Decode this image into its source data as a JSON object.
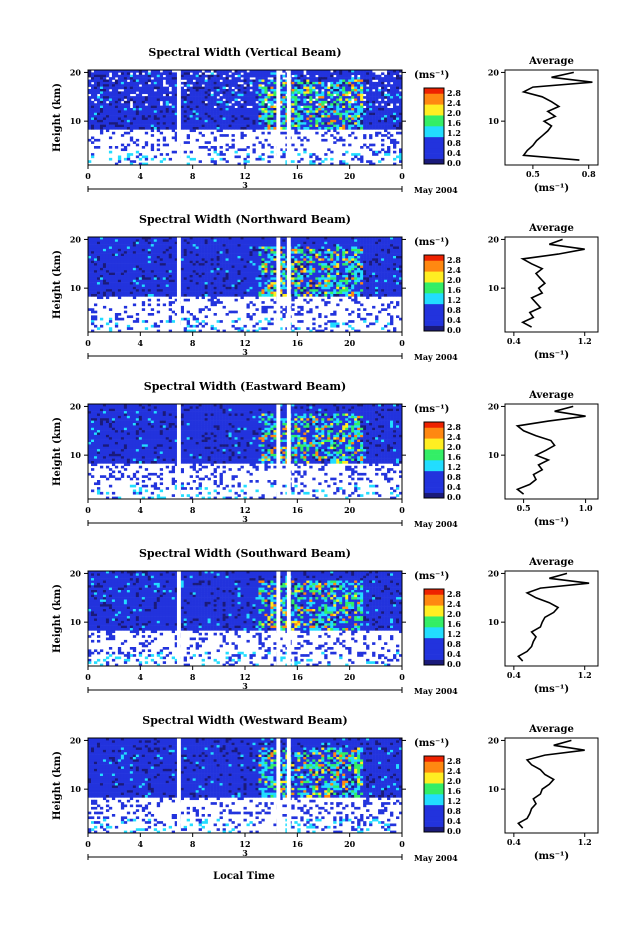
{
  "figure": {
    "bottom_xlabel": "Local Time",
    "panels_colorbar_unit": "(ms⁻¹)",
    "colorbar_ticks": [
      "2.8",
      "2.4",
      "2.0",
      "1.6",
      "1.2",
      "0.8",
      "0.4",
      "0.0"
    ],
    "colors": {
      "white": "#ffffff",
      "navy": "#1a1a7a",
      "blue": "#2233dd",
      "cyan": "#22ddff",
      "green": "#33ee66",
      "yellow": "#ffee22",
      "orange": "#ff8811",
      "red": "#ee2200"
    }
  },
  "chart_data": [
    {
      "type": "heatmap",
      "title": "Spectral Width (Vertical Beam)",
      "ylabel": "Height (km)",
      "xticks": [
        "0",
        "4",
        "8",
        "12",
        "16",
        "20",
        "0"
      ],
      "date_label": "3",
      "date_caption": "May 2004",
      "yticks": [
        "20",
        "10"
      ],
      "xlim": [
        0,
        24
      ],
      "ylim": [
        1,
        20.5
      ],
      "gaps": [
        [
          6.8,
          7.1
        ],
        [
          14.4,
          14.7
        ],
        [
          15.2,
          15.5
        ]
      ],
      "colorbar_range": [
        0,
        2.8
      ],
      "profile": {
        "title": "Average",
        "xlabel": "(ms⁻¹)",
        "xticks": [
          "0.5",
          "0.8"
        ],
        "xlim": [
          0.35,
          0.85
        ],
        "yticks": [
          "20",
          "10"
        ],
        "ylim": [
          1,
          20.5
        ],
        "height": [
          2,
          3,
          4,
          5,
          6,
          7,
          8,
          9,
          10,
          11,
          12,
          13,
          14,
          15,
          16,
          17,
          18,
          19,
          20
        ],
        "width": [
          0.75,
          0.45,
          0.47,
          0.5,
          0.52,
          0.55,
          0.58,
          0.6,
          0.56,
          0.62,
          0.58,
          0.64,
          0.6,
          0.55,
          0.45,
          0.5,
          0.82,
          0.6,
          0.72
        ]
      }
    },
    {
      "type": "heatmap",
      "title": "Spectral Width (Northward Beam)",
      "ylabel": "Height (km)",
      "xticks": [
        "0",
        "4",
        "8",
        "12",
        "16",
        "20",
        "0"
      ],
      "date_label": "3",
      "date_caption": "May 2004",
      "yticks": [
        "20",
        "10"
      ],
      "xlim": [
        0,
        24
      ],
      "ylim": [
        1,
        20.5
      ],
      "gaps": [
        [
          6.8,
          7.1
        ],
        [
          14.4,
          14.7
        ],
        [
          15.2,
          15.5
        ]
      ],
      "colorbar_range": [
        0,
        2.8
      ],
      "profile": {
        "title": "Average",
        "xlabel": "(ms⁻¹)",
        "xticks": [
          "0.4",
          "1.2"
        ],
        "xlim": [
          0.3,
          1.35
        ],
        "yticks": [
          "20",
          "10"
        ],
        "ylim": [
          1,
          20.5
        ],
        "height": [
          2,
          3,
          4,
          5,
          6,
          7,
          8,
          9,
          10,
          11,
          12,
          13,
          14,
          15,
          16,
          17,
          18,
          19,
          20
        ],
        "width": [
          0.6,
          0.5,
          0.62,
          0.58,
          0.7,
          0.65,
          0.6,
          0.72,
          0.68,
          0.75,
          0.7,
          0.65,
          0.72,
          0.6,
          0.5,
          0.9,
          1.2,
          0.8,
          0.95
        ]
      }
    },
    {
      "type": "heatmap",
      "title": "Spectral Width (Eastward Beam)",
      "ylabel": "Height (km)",
      "xticks": [
        "0",
        "4",
        "8",
        "12",
        "16",
        "20",
        "0"
      ],
      "date_label": "3",
      "date_caption": "May 2004",
      "yticks": [
        "20",
        "10"
      ],
      "xlim": [
        0,
        24
      ],
      "ylim": [
        1,
        20.5
      ],
      "gaps": [
        [
          6.8,
          7.1
        ],
        [
          14.4,
          14.7
        ],
        [
          15.2,
          15.5
        ]
      ],
      "colorbar_range": [
        0,
        2.8
      ],
      "profile": {
        "title": "Average",
        "xlabel": "(ms⁻¹)",
        "xticks": [
          "0.5",
          "1.0"
        ],
        "xlim": [
          0.35,
          1.1
        ],
        "yticks": [
          "20",
          "10"
        ],
        "ylim": [
          1,
          20.5
        ],
        "height": [
          2,
          3,
          4,
          5,
          6,
          7,
          8,
          9,
          10,
          11,
          12,
          13,
          14,
          15,
          16,
          17,
          18,
          19,
          20
        ],
        "width": [
          0.5,
          0.45,
          0.55,
          0.6,
          0.58,
          0.65,
          0.62,
          0.7,
          0.6,
          0.68,
          0.75,
          0.72,
          0.6,
          0.5,
          0.45,
          0.7,
          1.0,
          0.75,
          0.9
        ]
      }
    },
    {
      "type": "heatmap",
      "title": "Spectral Width (Southward Beam)",
      "ylabel": "Height (km)",
      "xticks": [
        "0",
        "4",
        "8",
        "12",
        "16",
        "20",
        "0"
      ],
      "date_label": "3",
      "date_caption": "May 2004",
      "yticks": [
        "20",
        "10"
      ],
      "xlim": [
        0,
        24
      ],
      "ylim": [
        1,
        20.5
      ],
      "gaps": [
        [
          6.8,
          7.1
        ],
        [
          14.4,
          14.7
        ],
        [
          15.2,
          15.5
        ]
      ],
      "colorbar_range": [
        0,
        2.8
      ],
      "profile": {
        "title": "Average",
        "xlabel": "(ms⁻¹)",
        "xticks": [
          "0.4",
          "1.2"
        ],
        "xlim": [
          0.3,
          1.35
        ],
        "yticks": [
          "20",
          "10"
        ],
        "ylim": [
          1,
          20.5
        ],
        "height": [
          2,
          3,
          4,
          5,
          6,
          7,
          8,
          9,
          10,
          11,
          12,
          13,
          14,
          15,
          16,
          17,
          18,
          19,
          20
        ],
        "width": [
          0.5,
          0.45,
          0.55,
          0.6,
          0.62,
          0.65,
          0.6,
          0.7,
          0.72,
          0.75,
          0.85,
          0.9,
          0.8,
          0.65,
          0.55,
          0.7,
          1.25,
          0.8,
          1.0
        ]
      }
    },
    {
      "type": "heatmap",
      "title": "Spectral Width (Westward Beam)",
      "ylabel": "Height (km)",
      "xticks": [
        "0",
        "4",
        "8",
        "12",
        "16",
        "20",
        "0"
      ],
      "date_label": "3",
      "date_caption": "May 2004",
      "yticks": [
        "20",
        "10"
      ],
      "xlim": [
        0,
        24
      ],
      "ylim": [
        1,
        20.5
      ],
      "gaps": [
        [
          6.8,
          7.1
        ],
        [
          14.4,
          14.7
        ],
        [
          15.2,
          15.5
        ]
      ],
      "colorbar_range": [
        0,
        2.8
      ],
      "profile": {
        "title": "Average",
        "xlabel": "(ms⁻¹)",
        "xticks": [
          "0.4",
          "1.2"
        ],
        "xlim": [
          0.3,
          1.35
        ],
        "yticks": [
          "20",
          "10"
        ],
        "ylim": [
          1,
          20.5
        ],
        "height": [
          2,
          3,
          4,
          5,
          6,
          7,
          8,
          9,
          10,
          11,
          12,
          13,
          14,
          15,
          16,
          17,
          18,
          19,
          20
        ],
        "width": [
          0.5,
          0.45,
          0.55,
          0.58,
          0.6,
          0.65,
          0.62,
          0.7,
          0.72,
          0.8,
          0.85,
          0.75,
          0.7,
          0.6,
          0.55,
          0.75,
          1.2,
          0.85,
          1.05
        ]
      }
    }
  ]
}
